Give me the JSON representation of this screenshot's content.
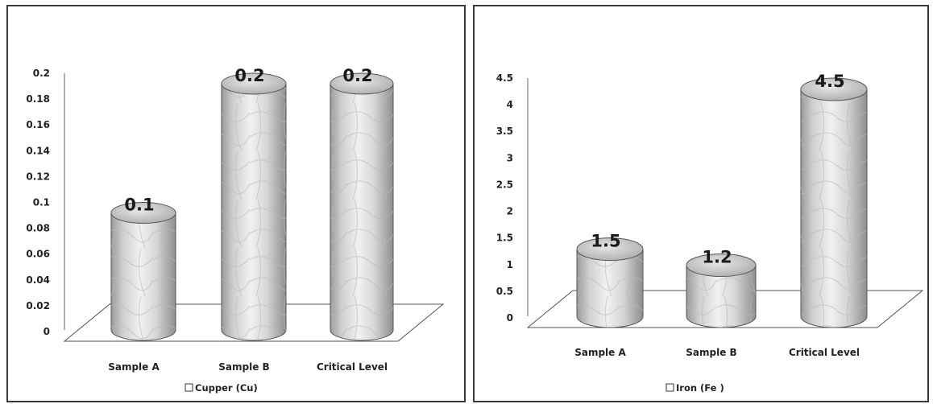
{
  "chart_data": [
    {
      "type": "bar",
      "style": "3d-cylinder",
      "categories": [
        "Sample A",
        "Sample B",
        "Critical Level"
      ],
      "series": [
        {
          "name": "Cupper  (Cu)",
          "values": [
            0.1,
            0.2,
            0.2
          ]
        }
      ],
      "data_labels": [
        "0.1",
        "0.2",
        "0.2"
      ],
      "yticks": [
        "0",
        "0.02",
        "0.04",
        "0.06",
        "0.08",
        "0.1",
        "0.12",
        "0.14",
        "0.16",
        "0.18",
        "0.2"
      ],
      "ylim": [
        0,
        0.2
      ],
      "legend_marker_color": "#ffffff",
      "legend_position": "bottom",
      "grid": false,
      "bar_fill": "marble-gray",
      "xlabel": "",
      "ylabel": "",
      "title": ""
    },
    {
      "type": "bar",
      "style": "3d-cylinder",
      "categories": [
        "Sample A",
        "Sample B",
        "Critical Level"
      ],
      "series": [
        {
          "name": "Iron (Fe )",
          "values": [
            1.5,
            1.2,
            4.5
          ]
        }
      ],
      "data_labels": [
        "1.5",
        "1.2",
        "4.5"
      ],
      "yticks": [
        "0",
        "0.5",
        "1",
        "1.5",
        "2",
        "2.5",
        "3",
        "3.5",
        "4",
        "4.5"
      ],
      "ylim": [
        0,
        4.5
      ],
      "legend_marker_color": "#ffffff",
      "legend_position": "bottom",
      "grid": false,
      "bar_fill": "marble-gray",
      "xlabel": "",
      "ylabel": "",
      "title": ""
    }
  ]
}
